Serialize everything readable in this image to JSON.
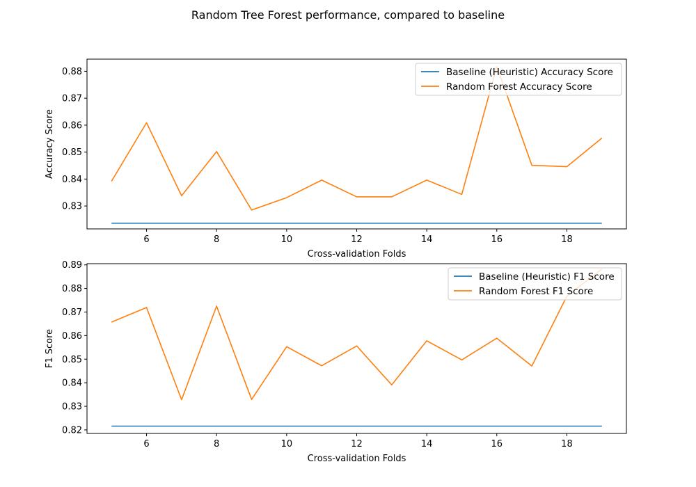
{
  "figure": {
    "title": "Random Tree Forest performance, compared to baseline"
  },
  "chart_data": [
    {
      "type": "line",
      "xlabel": "Cross-validation Folds",
      "ylabel": "Accuracy Score",
      "xlim": [
        4.3,
        19.7
      ],
      "ylim": [
        0.8215,
        0.8845
      ],
      "xticks": [
        6,
        8,
        10,
        12,
        14,
        16,
        18
      ],
      "yticks": [
        0.83,
        0.84,
        0.85,
        0.86,
        0.87,
        0.88
      ],
      "legend_position": "top-right",
      "x": [
        5,
        6,
        7,
        8,
        9,
        10,
        11,
        12,
        13,
        14,
        15,
        16,
        17,
        18,
        19
      ],
      "series": [
        {
          "name": "Baseline (Heuristic) Accuracy Score",
          "color": "#1f77b4",
          "values": [
            0.8236,
            0.8236,
            0.8236,
            0.8236,
            0.8236,
            0.8236,
            0.8236,
            0.8236,
            0.8236,
            0.8236,
            0.8236,
            0.8236,
            0.8236,
            0.8236,
            0.8236
          ]
        },
        {
          "name": "Random Forest Accuracy Score",
          "color": "#ff7f0e",
          "values": [
            0.8392,
            0.8609,
            0.8338,
            0.8502,
            0.8285,
            0.8331,
            0.8396,
            0.8334,
            0.8334,
            0.8396,
            0.8343,
            0.8818,
            0.8451,
            0.8446,
            0.8552
          ]
        }
      ]
    },
    {
      "type": "line",
      "xlabel": "Cross-validation Folds",
      "ylabel": "F1 Score",
      "xlim": [
        4.3,
        19.7
      ],
      "ylim": [
        0.8185,
        0.8905
      ],
      "xticks": [
        6,
        8,
        10,
        12,
        14,
        16,
        18
      ],
      "yticks": [
        0.82,
        0.83,
        0.84,
        0.85,
        0.86,
        0.87,
        0.88,
        0.89
      ],
      "legend_position": "top-right",
      "x": [
        5,
        6,
        7,
        8,
        9,
        10,
        11,
        12,
        13,
        14,
        15,
        16,
        17,
        18,
        19
      ],
      "series": [
        {
          "name": "Baseline (Heuristic) F1 Score",
          "color": "#1f77b4",
          "values": [
            0.8216,
            0.8216,
            0.8216,
            0.8216,
            0.8216,
            0.8216,
            0.8216,
            0.8216,
            0.8216,
            0.8216,
            0.8216,
            0.8216,
            0.8216,
            0.8216,
            0.8216
          ]
        },
        {
          "name": "Random Forest F1 Score",
          "color": "#ff7f0e",
          "values": [
            0.8657,
            0.8719,
            0.8328,
            0.8725,
            0.8329,
            0.8553,
            0.8472,
            0.8556,
            0.8391,
            0.8578,
            0.8497,
            0.8589,
            0.8471,
            0.8767,
            0.8883
          ]
        }
      ]
    }
  ]
}
